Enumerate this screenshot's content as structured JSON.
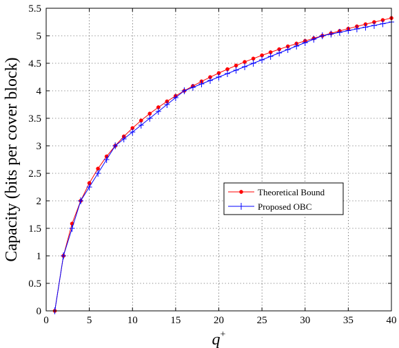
{
  "chart_data": {
    "type": "line",
    "xlabel": "q",
    "xlabel_superscript": "+",
    "ylabel": "Capacity (bits per cover block)",
    "xlim": [
      0,
      40
    ],
    "ylim": [
      0,
      5.5
    ],
    "xticks": [
      0,
      5,
      10,
      15,
      20,
      25,
      30,
      35,
      40
    ],
    "yticks": [
      0,
      0.5,
      1,
      1.5,
      2,
      2.5,
      3,
      3.5,
      4,
      4.5,
      5,
      5.5
    ],
    "xtick_labels": [
      "0",
      "5",
      "10",
      "15",
      "20",
      "25",
      "30",
      "35",
      "40"
    ],
    "ytick_labels": [
      "0",
      "0.5",
      "1",
      "1.5",
      "2",
      "2.5",
      "3",
      "3.5",
      "4",
      "4.5",
      "5",
      "5.5"
    ],
    "grid": true,
    "legend_position": "center-right",
    "series": [
      {
        "name": "Theoretical Bound",
        "color": "#ff0000",
        "marker": "dot",
        "x": [
          1,
          2,
          3,
          4,
          5,
          6,
          7,
          8,
          9,
          10,
          11,
          12,
          13,
          14,
          15,
          16,
          17,
          18,
          19,
          20,
          21,
          22,
          23,
          24,
          25,
          26,
          27,
          28,
          29,
          30,
          31,
          32,
          33,
          34,
          35,
          36,
          37,
          38,
          39,
          40
        ],
        "values": [
          0,
          1,
          1.585,
          2,
          2.322,
          2.585,
          2.807,
          3,
          3.17,
          3.322,
          3.459,
          3.585,
          3.7,
          3.807,
          3.907,
          4,
          4.087,
          4.17,
          4.248,
          4.322,
          4.392,
          4.459,
          4.524,
          4.585,
          4.644,
          4.7,
          4.755,
          4.807,
          4.858,
          4.907,
          4.954,
          5,
          5.044,
          5.087,
          5.129,
          5.17,
          5.209,
          5.248,
          5.285,
          5.322
        ]
      },
      {
        "name": "Proposed OBC",
        "color": "#0000ff",
        "marker": "plus",
        "x": [
          1,
          2,
          3,
          4,
          5,
          6,
          7,
          8,
          9,
          10,
          11,
          12,
          13,
          14,
          15,
          16,
          17,
          18,
          19,
          20,
          21,
          22,
          23,
          24,
          25,
          26,
          27,
          28,
          29,
          30,
          31,
          32,
          33,
          34,
          35,
          36,
          37,
          38,
          39,
          40
        ],
        "values": [
          0,
          1,
          1.5,
          2,
          2.25,
          2.5,
          2.75,
          3,
          3.125,
          3.25,
          3.375,
          3.5,
          3.625,
          3.75,
          3.875,
          4,
          4.0625,
          4.125,
          4.1875,
          4.25,
          4.3125,
          4.375,
          4.4375,
          4.5,
          4.5625,
          4.625,
          4.6875,
          4.75,
          4.8125,
          4.875,
          4.9375,
          5,
          5.03125,
          5.0625,
          5.09375,
          5.125,
          5.15625,
          5.1875,
          5.21875,
          5.25
        ]
      }
    ]
  }
}
